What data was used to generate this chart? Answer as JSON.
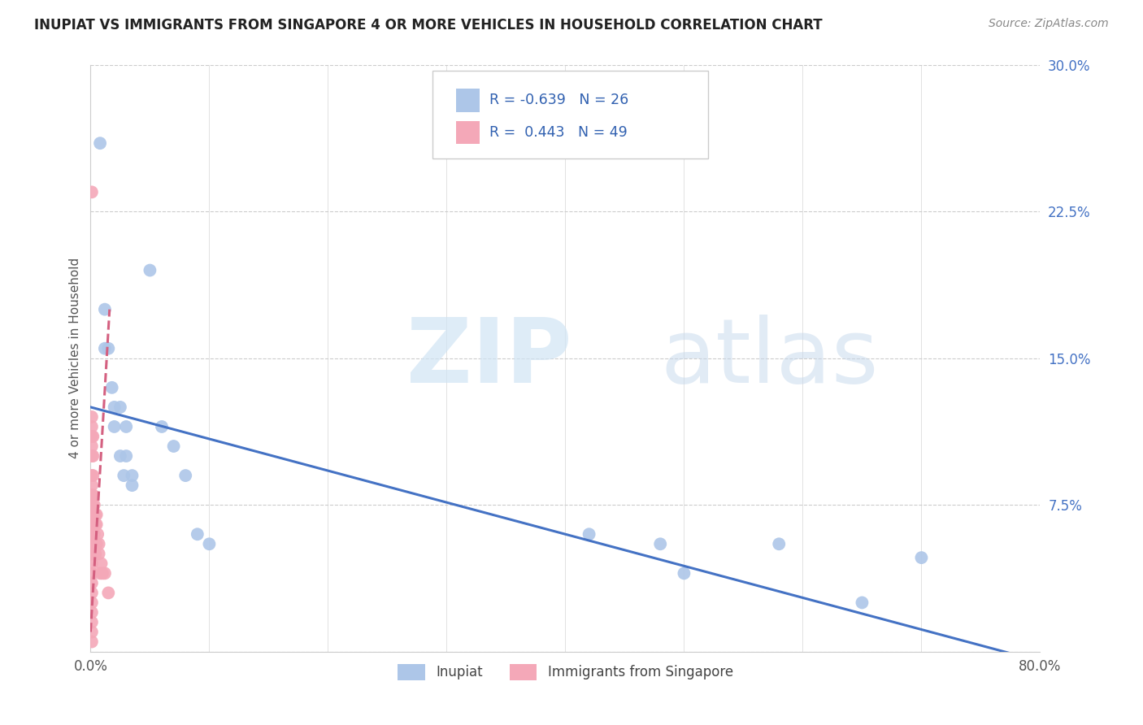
{
  "title": "INUPIAT VS IMMIGRANTS FROM SINGAPORE 4 OR MORE VEHICLES IN HOUSEHOLD CORRELATION CHART",
  "source": "Source: ZipAtlas.com",
  "ylabel": "4 or more Vehicles in Household",
  "xlim": [
    0,
    0.8
  ],
  "ylim": [
    0,
    0.3
  ],
  "xticks": [
    0.0,
    0.1,
    0.2,
    0.3,
    0.4,
    0.5,
    0.6,
    0.7,
    0.8
  ],
  "yticks": [
    0.0,
    0.075,
    0.15,
    0.225,
    0.3
  ],
  "inupiat_R": "-0.639",
  "inupiat_N": "26",
  "singapore_R": "0.443",
  "singapore_N": "49",
  "inupiat_color": "#adc6e8",
  "singapore_color": "#f4a8b8",
  "inupiat_line_color": "#4472c4",
  "singapore_line_color": "#d46080",
  "inupiat_scatter_x": [
    0.008,
    0.012,
    0.012,
    0.015,
    0.018,
    0.02,
    0.02,
    0.025,
    0.025,
    0.028,
    0.03,
    0.03,
    0.035,
    0.035,
    0.05,
    0.06,
    0.07,
    0.08,
    0.09,
    0.1,
    0.42,
    0.48,
    0.5,
    0.58,
    0.65,
    0.7
  ],
  "inupiat_scatter_y": [
    0.26,
    0.175,
    0.155,
    0.155,
    0.135,
    0.125,
    0.115,
    0.125,
    0.1,
    0.09,
    0.115,
    0.1,
    0.09,
    0.085,
    0.195,
    0.115,
    0.105,
    0.09,
    0.06,
    0.055,
    0.06,
    0.055,
    0.04,
    0.055,
    0.025,
    0.048
  ],
  "singapore_scatter_x": [
    0.001,
    0.001,
    0.001,
    0.001,
    0.001,
    0.001,
    0.001,
    0.001,
    0.001,
    0.001,
    0.001,
    0.001,
    0.001,
    0.001,
    0.001,
    0.001,
    0.001,
    0.001,
    0.001,
    0.001,
    0.001,
    0.001,
    0.002,
    0.002,
    0.002,
    0.002,
    0.002,
    0.002,
    0.002,
    0.002,
    0.003,
    0.003,
    0.003,
    0.003,
    0.004,
    0.004,
    0.004,
    0.004,
    0.005,
    0.005,
    0.005,
    0.006,
    0.007,
    0.007,
    0.008,
    0.009,
    0.01,
    0.012,
    0.015
  ],
  "singapore_scatter_y": [
    0.005,
    0.01,
    0.015,
    0.02,
    0.025,
    0.03,
    0.035,
    0.04,
    0.045,
    0.05,
    0.055,
    0.06,
    0.07,
    0.08,
    0.085,
    0.09,
    0.1,
    0.105,
    0.11,
    0.115,
    0.12,
    0.235,
    0.06,
    0.065,
    0.07,
    0.075,
    0.08,
    0.09,
    0.1,
    0.11,
    0.06,
    0.065,
    0.07,
    0.075,
    0.05,
    0.055,
    0.065,
    0.07,
    0.055,
    0.065,
    0.07,
    0.06,
    0.05,
    0.055,
    0.04,
    0.045,
    0.04,
    0.04,
    0.03
  ],
  "inupiat_line_y_start": 0.125,
  "inupiat_line_y_end": -0.005,
  "singapore_line_x_start": 0.0,
  "singapore_line_x_end": 0.016,
  "singapore_line_y_start": 0.01,
  "singapore_line_y_end": 0.175
}
